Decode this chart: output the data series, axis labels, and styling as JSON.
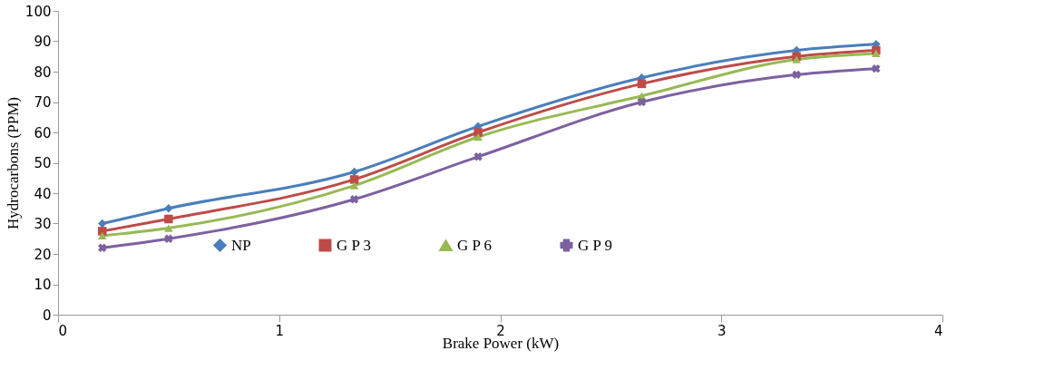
{
  "chart_data": {
    "type": "line",
    "xlabel": "Brake Power (kW)",
    "ylabel": "Hydrocarbons  (PPM)",
    "x": [
      0.2,
      0.5,
      1.34,
      1.9,
      2.64,
      3.34,
      3.7
    ],
    "series": [
      {
        "name": "NP",
        "color": "#4a7ebb",
        "marker": "diamond",
        "values": [
          30,
          35,
          47,
          62,
          78,
          87,
          89
        ]
      },
      {
        "name": "G P 3",
        "color": "#be4b48",
        "marker": "square",
        "values": [
          27.5,
          31.5,
          44.5,
          60,
          76,
          85,
          87
        ]
      },
      {
        "name": "G P 6",
        "color": "#98b954",
        "marker": "triangle",
        "values": [
          26,
          28.5,
          42.5,
          58.5,
          72,
          84,
          86
        ]
      },
      {
        "name": "G P 9",
        "color": "#7d60a0",
        "marker": "cross",
        "values": [
          22,
          25,
          38,
          52,
          70,
          79,
          81
        ]
      }
    ],
    "xlim": [
      0,
      4
    ],
    "xticks": [
      0,
      1,
      2,
      3,
      4
    ],
    "ylim": [
      0,
      100
    ],
    "yticks": [
      0,
      10,
      20,
      30,
      40,
      50,
      60,
      70,
      80,
      90,
      100
    ],
    "grid": false,
    "legend": "bottom",
    "line_style": "solid"
  }
}
